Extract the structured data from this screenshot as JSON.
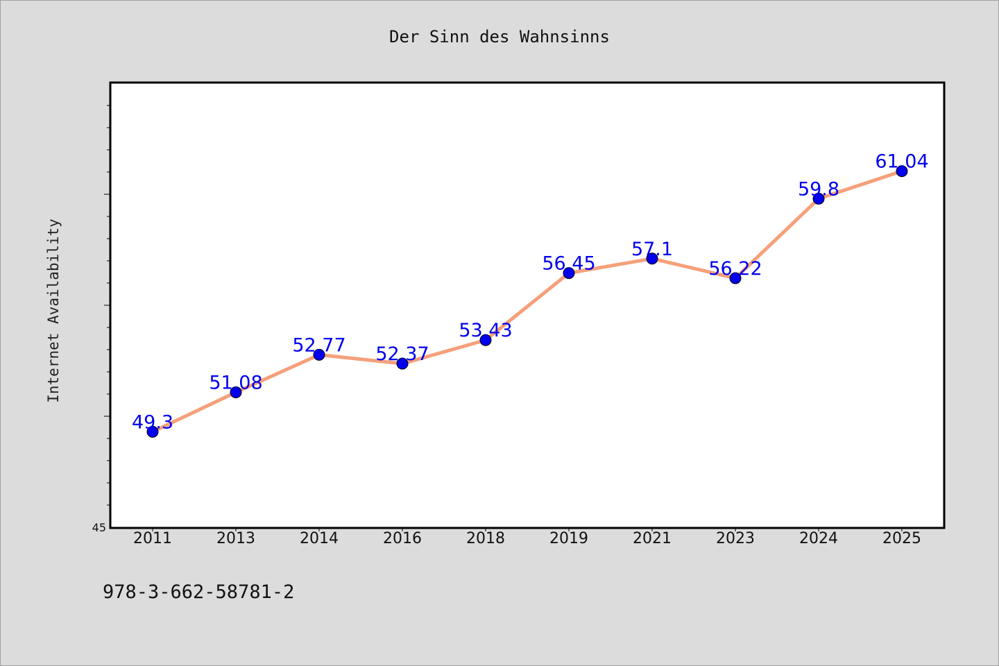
{
  "chart_data": {
    "type": "line",
    "title": "Der Sinn des Wahnsinns",
    "xlabel": "",
    "ylabel": "Internet Availability",
    "categories": [
      "2011",
      "2013",
      "2014",
      "2016",
      "2018",
      "2019",
      "2021",
      "2023",
      "2024",
      "2025"
    ],
    "series": [
      {
        "values": [
          49.3,
          51.08,
          52.77,
          52.37,
          53.43,
          56.45,
          57.1,
          56.22,
          59.8,
          61.04
        ],
        "labels": [
          "49.3",
          "51.08",
          "52.77",
          "52.37",
          "53.43",
          "56.45",
          "57.1",
          "56.22",
          "59.8",
          "61.04"
        ]
      }
    ],
    "ylim": [
      45,
      65
    ],
    "y_tick_labels": [
      "45"
    ],
    "grid": false,
    "legend": "none",
    "line_color": "#f5a07a",
    "marker_color": "#0000ee",
    "label_color": "#0000ee"
  },
  "footer_text": "978-3-662-58781-2"
}
